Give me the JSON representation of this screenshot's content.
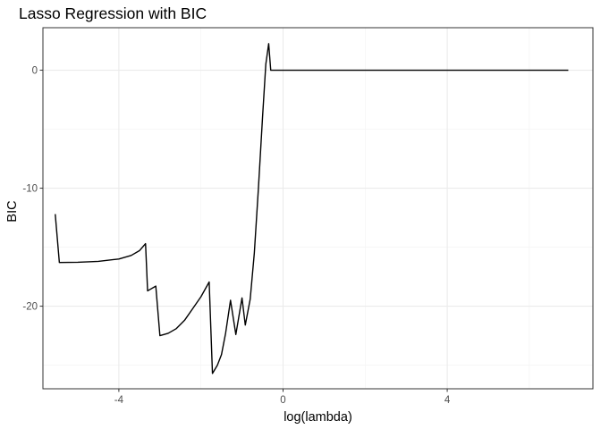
{
  "chart_data": {
    "type": "line",
    "title": "Lasso Regression with BIC",
    "xlabel": "log(lambda)",
    "ylabel": "BIC",
    "xlim": [
      -5.85,
      7.55
    ],
    "ylim": [
      -27.0,
      3.6
    ],
    "x_ticks": [
      -4,
      0,
      4
    ],
    "y_ticks": [
      0,
      -10,
      -20
    ],
    "grid": true,
    "legend": "none",
    "series": [
      {
        "color": "#000000",
        "points": [
          [
            -5.55,
            -12.2
          ],
          [
            -5.45,
            -16.3
          ],
          [
            -5.0,
            -16.28
          ],
          [
            -4.5,
            -16.2
          ],
          [
            -4.0,
            -16.0
          ],
          [
            -3.7,
            -15.7
          ],
          [
            -3.5,
            -15.3
          ],
          [
            -3.35,
            -14.7
          ],
          [
            -3.3,
            -18.7
          ],
          [
            -3.1,
            -18.3
          ],
          [
            -3.0,
            -22.5
          ],
          [
            -2.8,
            -22.3
          ],
          [
            -2.6,
            -21.9
          ],
          [
            -2.4,
            -21.2
          ],
          [
            -2.2,
            -20.2
          ],
          [
            -2.0,
            -19.2
          ],
          [
            -1.8,
            -17.95
          ],
          [
            -1.72,
            -25.7
          ],
          [
            -1.6,
            -25.0
          ],
          [
            -1.5,
            -24.1
          ],
          [
            -1.4,
            -22.3
          ],
          [
            -1.28,
            -19.5
          ],
          [
            -1.15,
            -22.4
          ],
          [
            -1.0,
            -19.3
          ],
          [
            -0.92,
            -21.6
          ],
          [
            -0.8,
            -19.4
          ],
          [
            -0.7,
            -15.5
          ],
          [
            -0.6,
            -10.0
          ],
          [
            -0.5,
            -4.0
          ],
          [
            -0.42,
            0.5
          ],
          [
            -0.35,
            2.25
          ],
          [
            -0.3,
            0.0
          ],
          [
            6.95,
            0.0
          ]
        ]
      }
    ]
  }
}
